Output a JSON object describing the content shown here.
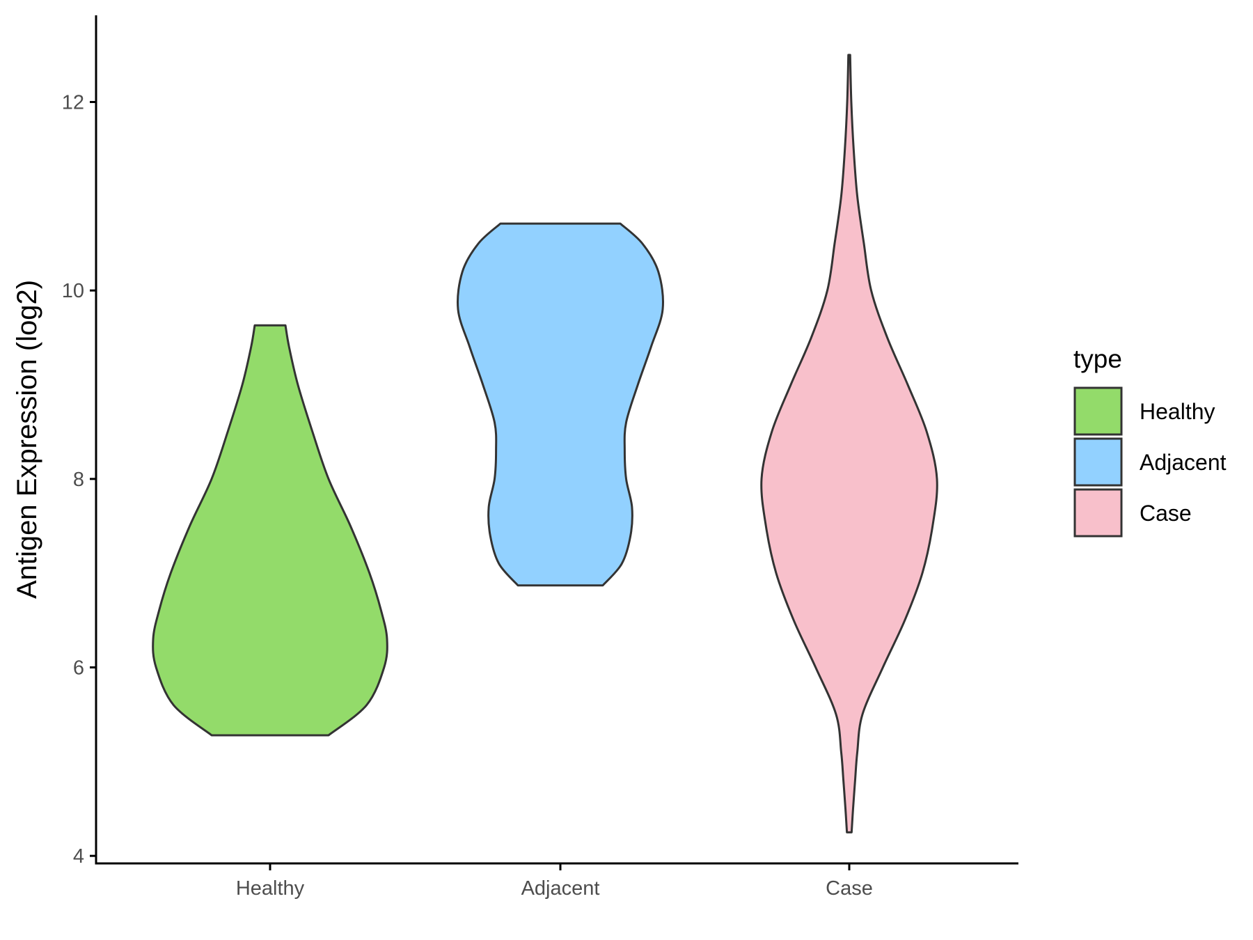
{
  "chart_data": {
    "type": "violin",
    "xlabel": "",
    "ylabel": "Antigen Expression (log2)",
    "categories": [
      "Healthy",
      "Adjacent",
      "Case"
    ],
    "yticks": [
      4,
      6,
      8,
      10,
      12
    ],
    "ylim": [
      3.92,
      12.92
    ],
    "grid": false,
    "legend": {
      "title": "type",
      "placement": "right",
      "entries": [
        "Healthy",
        "Adjacent",
        "Case"
      ]
    },
    "series": [
      {
        "name": "Healthy",
        "color": "#93DB6A",
        "y_min": 5.28,
        "y_max": 9.63,
        "profile": [
          [
            5.28,
            0.4
          ],
          [
            5.6,
            0.66
          ],
          [
            6.0,
            0.78
          ],
          [
            6.3,
            0.8
          ],
          [
            6.6,
            0.76
          ],
          [
            7.0,
            0.68
          ],
          [
            7.5,
            0.55
          ],
          [
            8.0,
            0.4
          ],
          [
            8.5,
            0.29
          ],
          [
            9.0,
            0.19
          ],
          [
            9.4,
            0.13
          ],
          [
            9.63,
            0.105
          ]
        ]
      },
      {
        "name": "Adjacent",
        "color": "#92D1FF",
        "y_min": 6.87,
        "y_max": 10.71,
        "profile": [
          [
            6.87,
            0.29
          ],
          [
            7.1,
            0.42
          ],
          [
            7.4,
            0.48
          ],
          [
            7.7,
            0.49
          ],
          [
            8.0,
            0.45
          ],
          [
            8.3,
            0.44
          ],
          [
            8.6,
            0.45
          ],
          [
            9.0,
            0.53
          ],
          [
            9.4,
            0.62
          ],
          [
            9.8,
            0.7
          ],
          [
            10.2,
            0.67
          ],
          [
            10.5,
            0.56
          ],
          [
            10.71,
            0.41
          ]
        ]
      },
      {
        "name": "Case",
        "color": "#F8C0CB",
        "y_min": 4.25,
        "y_max": 12.5,
        "profile": [
          [
            4.25,
            0.016
          ],
          [
            4.5,
            0.026
          ],
          [
            4.8,
            0.04
          ],
          [
            5.1,
            0.055
          ],
          [
            5.5,
            0.09
          ],
          [
            6.0,
            0.23
          ],
          [
            6.5,
            0.38
          ],
          [
            7.0,
            0.5
          ],
          [
            7.5,
            0.57
          ],
          [
            8.0,
            0.6
          ],
          [
            8.5,
            0.53
          ],
          [
            9.0,
            0.4
          ],
          [
            9.5,
            0.26
          ],
          [
            10.0,
            0.15
          ],
          [
            10.5,
            0.1
          ],
          [
            11.0,
            0.055
          ],
          [
            11.5,
            0.03
          ],
          [
            12.0,
            0.014
          ],
          [
            12.5,
            0.006
          ]
        ]
      }
    ]
  }
}
